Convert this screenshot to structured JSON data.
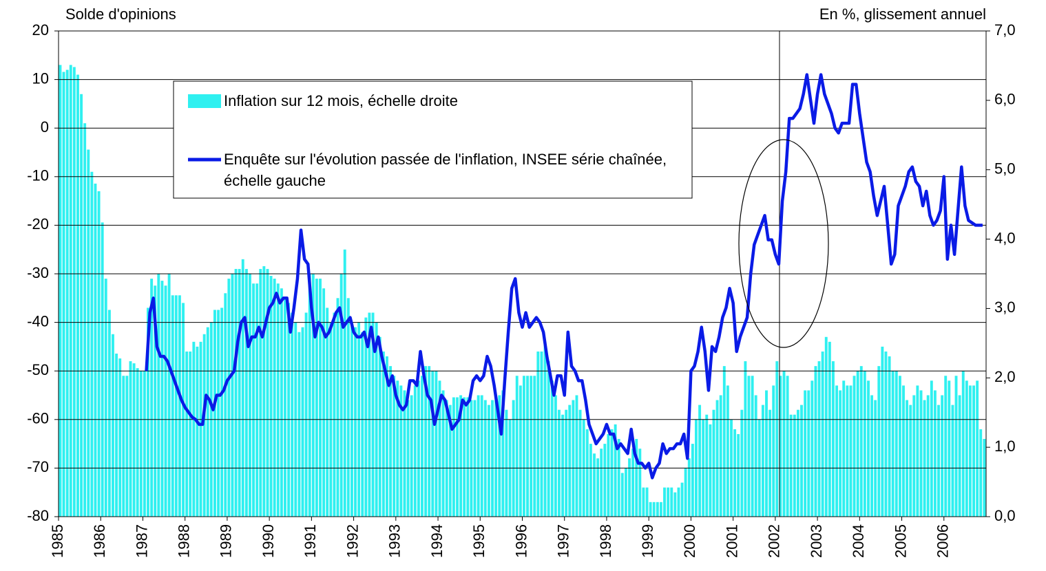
{
  "chart_data": {
    "type": "combo",
    "y_label": "Solde d'opinions",
    "y2_label": "En %, glissement annuel",
    "xlim": [
      1985,
      2007
    ],
    "xticks": [
      1985,
      1986,
      1987,
      1988,
      1989,
      1990,
      1991,
      1992,
      1993,
      1994,
      1995,
      1996,
      1997,
      1998,
      1999,
      2000,
      2001,
      2002,
      2003,
      2004,
      2005,
      2006
    ],
    "ylim": [
      -80,
      20
    ],
    "yticks": [
      -80,
      -70,
      -60,
      -50,
      -40,
      -30,
      -20,
      -10,
      0,
      10,
      20
    ],
    "y2lim": [
      0,
      7
    ],
    "y2ticks": [
      {
        "value": 0,
        "label": "0,0"
      },
      {
        "value": 1,
        "label": "1,0"
      },
      {
        "value": 2,
        "label": "2,0"
      },
      {
        "value": 3,
        "label": "3,0"
      },
      {
        "value": 4,
        "label": "4,0"
      },
      {
        "value": 5,
        "label": "5,0"
      },
      {
        "value": 6,
        "label": "6,0"
      },
      {
        "value": 7,
        "label": "7,0"
      }
    ],
    "grid": true,
    "vlines": [
      2002.1
    ],
    "x": [
      1985,
      1985.083,
      1985.167,
      1985.25,
      1985.333,
      1985.417,
      1985.5,
      1985.583,
      1985.667,
      1985.75,
      1985.833,
      1985.917,
      1986,
      1986.083,
      1986.167,
      1986.25,
      1986.333,
      1986.417,
      1986.5,
      1986.583,
      1986.667,
      1986.75,
      1986.833,
      1986.917,
      1987,
      1987.083,
      1987.167,
      1987.25,
      1987.333,
      1987.417,
      1987.5,
      1987.583,
      1987.667,
      1987.75,
      1987.833,
      1987.917,
      1988,
      1988.083,
      1988.167,
      1988.25,
      1988.333,
      1988.417,
      1988.5,
      1988.583,
      1988.667,
      1988.75,
      1988.833,
      1988.917,
      1989,
      1989.083,
      1989.167,
      1989.25,
      1989.333,
      1989.417,
      1989.5,
      1989.583,
      1989.667,
      1989.75,
      1989.833,
      1989.917,
      1990,
      1990.083,
      1990.167,
      1990.25,
      1990.333,
      1990.417,
      1990.5,
      1990.583,
      1990.667,
      1990.75,
      1990.833,
      1990.917,
      1991,
      1991.083,
      1991.167,
      1991.25,
      1991.333,
      1991.417,
      1991.5,
      1991.583,
      1991.667,
      1991.75,
      1991.833,
      1991.917,
      1992,
      1992.083,
      1992.167,
      1992.25,
      1992.333,
      1992.417,
      1992.5,
      1992.583,
      1992.667,
      1992.75,
      1992.833,
      1992.917,
      1993,
      1993.083,
      1993.167,
      1993.25,
      1993.333,
      1993.417,
      1993.5,
      1993.583,
      1993.667,
      1993.75,
      1993.833,
      1993.917,
      1994,
      1994.083,
      1994.167,
      1994.25,
      1994.333,
      1994.417,
      1994.5,
      1994.583,
      1994.667,
      1994.75,
      1994.833,
      1994.917,
      1995,
      1995.083,
      1995.167,
      1995.25,
      1995.333,
      1995.417,
      1995.5,
      1995.583,
      1995.667,
      1995.75,
      1995.833,
      1995.917,
      1996,
      1996.083,
      1996.167,
      1996.25,
      1996.333,
      1996.417,
      1996.5,
      1996.583,
      1996.667,
      1996.75,
      1996.833,
      1996.917,
      1997,
      1997.083,
      1997.167,
      1997.25,
      1997.333,
      1997.417,
      1997.5,
      1997.583,
      1997.667,
      1997.75,
      1997.833,
      1997.917,
      1998,
      1998.083,
      1998.167,
      1998.25,
      1998.333,
      1998.417,
      1998.5,
      1998.583,
      1998.667,
      1998.75,
      1998.833,
      1998.917,
      1999,
      1999.083,
      1999.167,
      1999.25,
      1999.333,
      1999.417,
      1999.5,
      1999.583,
      1999.667,
      1999.75,
      1999.833,
      1999.917,
      2000,
      2000.083,
      2000.167,
      2000.25,
      2000.333,
      2000.417,
      2000.5,
      2000.583,
      2000.667,
      2000.75,
      2000.833,
      2000.917,
      2001,
      2001.083,
      2001.167,
      2001.25,
      2001.333,
      2001.417,
      2001.5,
      2001.583,
      2001.667,
      2001.75,
      2001.833,
      2001.917,
      2002,
      2002.083,
      2002.167,
      2002.25,
      2002.333,
      2002.417,
      2002.5,
      2002.583,
      2002.667,
      2002.75,
      2002.833,
      2002.917,
      2003,
      2003.083,
      2003.167,
      2003.25,
      2003.333,
      2003.417,
      2003.5,
      2003.583,
      2003.667,
      2003.75,
      2003.833,
      2003.917,
      2004,
      2004.083,
      2004.167,
      2004.25,
      2004.333,
      2004.417,
      2004.5,
      2004.583,
      2004.667,
      2004.75,
      2004.833,
      2004.917,
      2005,
      2005.083,
      2005.167,
      2005.25,
      2005.333,
      2005.417,
      2005.5,
      2005.583,
      2005.667,
      2005.75,
      2005.833,
      2005.917,
      2006,
      2006.083,
      2006.167,
      2006.25,
      2006.333,
      2006.417,
      2006.5,
      2006.583,
      2006.667,
      2006.75,
      2006.833,
      2006.917
    ],
    "series": [
      {
        "name": "Inflation sur 12 mois, échelle droite",
        "type": "bar",
        "axis": "y2",
        "color": "#2ff0f0",
        "values": [
          6.51,
          6.41,
          6.44,
          6.51,
          6.48,
          6.37,
          6.09,
          5.67,
          5.29,
          4.97,
          4.8,
          4.69,
          4.24,
          3.43,
          2.98,
          2.63,
          2.35,
          2.28,
          2.03,
          2.03,
          2.24,
          2.21,
          2.14,
          2.1,
          2.1,
          3.01,
          3.43,
          3.33,
          3.5,
          3.4,
          3.33,
          3.5,
          3.19,
          3.19,
          3.19,
          3.08,
          2.38,
          2.38,
          2.52,
          2.45,
          2.52,
          2.63,
          2.73,
          2.8,
          2.98,
          2.98,
          3.01,
          3.22,
          3.43,
          3.5,
          3.57,
          3.57,
          3.71,
          3.57,
          3.5,
          3.36,
          3.36,
          3.57,
          3.61,
          3.57,
          3.47,
          3.43,
          3.36,
          3.29,
          3.15,
          3.08,
          2.94,
          2.8,
          2.66,
          2.73,
          2.94,
          3.5,
          3.5,
          3.43,
          3.43,
          3.29,
          3.01,
          2.8,
          2.94,
          3.15,
          3.5,
          3.85,
          3.15,
          2.8,
          2.73,
          2.8,
          2.66,
          2.87,
          2.94,
          2.94,
          2.8,
          2.59,
          2.38,
          2.31,
          2.17,
          2.03,
          1.96,
          1.89,
          1.82,
          1.68,
          1.75,
          1.89,
          1.96,
          2.03,
          2.17,
          2.17,
          2.1,
          2.1,
          1.96,
          1.82,
          1.68,
          1.61,
          1.72,
          1.72,
          1.75,
          1.72,
          1.72,
          1.68,
          1.68,
          1.75,
          1.75,
          1.68,
          1.61,
          1.68,
          1.68,
          1.75,
          1.82,
          1.54,
          1.4,
          1.68,
          2.03,
          1.89,
          2.03,
          2.03,
          2.03,
          2.03,
          2.38,
          2.38,
          2.52,
          2.24,
          1.96,
          1.75,
          1.54,
          1.47,
          1.54,
          1.61,
          1.68,
          1.75,
          1.54,
          1.4,
          1.26,
          1.05,
          0.91,
          0.84,
          0.98,
          1.05,
          1.19,
          1.26,
          1.33,
          1.12,
          0.63,
          0.7,
          0.84,
          0.98,
          1.12,
          0.98,
          0.42,
          0.42,
          0.21,
          0.21,
          0.21,
          0.21,
          0.42,
          0.42,
          0.42,
          0.35,
          0.42,
          0.49,
          0.7,
          0.84,
          1.05,
          1.4,
          1.61,
          1.4,
          1.47,
          1.33,
          1.54,
          1.68,
          1.75,
          2.17,
          1.89,
          1.4,
          1.26,
          1.19,
          1.54,
          2.24,
          2.03,
          2.03,
          1.75,
          1.4,
          1.61,
          1.82,
          1.54,
          1.89,
          2.24,
          2.03,
          2.1,
          2.03,
          1.47,
          1.47,
          1.54,
          1.61,
          1.82,
          1.82,
          1.96,
          2.17,
          2.24,
          2.38,
          2.59,
          2.52,
          2.24,
          1.89,
          1.82,
          1.96,
          1.89,
          1.89,
          2.03,
          2.1,
          2.17,
          2.1,
          1.96,
          1.75,
          1.68,
          2.17,
          2.45,
          2.38,
          2.31,
          2.1,
          2.1,
          2.03,
          1.89,
          1.68,
          1.61,
          1.75,
          1.89,
          1.82,
          1.68,
          1.75,
          1.96,
          1.82,
          1.61,
          1.75,
          2.03,
          1.96,
          1.61,
          2.03,
          1.75,
          2.1,
          1.96,
          1.89,
          1.89,
          1.96,
          1.26,
          1.12
        ]
      },
      {
        "name": "Enquête sur l'évolution passée de l'inflation, INSEE série chaînée, échelle gauche",
        "type": "line",
        "axis": "y",
        "color": "#0a1be6",
        "values": [
          null,
          null,
          null,
          null,
          null,
          null,
          null,
          null,
          null,
          null,
          null,
          null,
          null,
          null,
          null,
          null,
          null,
          null,
          null,
          null,
          null,
          null,
          null,
          null,
          null,
          -50,
          -38,
          -35,
          -45,
          -47,
          -47,
          -48,
          -50,
          -52,
          -54,
          -56,
          -57.5,
          -58.5,
          -59.5,
          -60,
          -61,
          -61,
          -55,
          -56,
          -58,
          -55,
          -55,
          -54,
          -52,
          -51,
          -50,
          -44,
          -40,
          -39,
          -45,
          -43,
          -43,
          -41,
          -43,
          -40,
          -37,
          -36,
          -34,
          -36,
          -35,
          -35,
          -42,
          -37,
          -31,
          -21,
          -27,
          -28,
          -37,
          -43,
          -40,
          -41,
          -43,
          -42,
          -40,
          -38,
          -37,
          -41,
          -40,
          -39,
          -42,
          -43,
          -43,
          -42,
          -45,
          -41,
          -46,
          -43,
          -47,
          -50,
          -53,
          -51,
          -55,
          -57,
          -58,
          -57,
          -52,
          -52,
          -53,
          -46,
          -51,
          -55,
          -56,
          -61,
          -58,
          -55,
          -56,
          -59,
          -62,
          -61,
          -60,
          -56,
          -57,
          -56,
          -52,
          -51,
          -52,
          -51,
          -47,
          -49,
          -53,
          -58,
          -63,
          -52,
          -42,
          -33,
          -31,
          -38,
          -41,
          -38,
          -41,
          -40,
          -39,
          -40,
          -42,
          -47,
          -51,
          -55,
          -51,
          -51,
          -55,
          -42,
          -49,
          -50,
          -52,
          -52,
          -56,
          -61,
          -63,
          -65,
          -64,
          -63,
          -61,
          -63,
          -63,
          -66,
          -65,
          -66,
          -67,
          -62,
          -67,
          -69,
          -69,
          -70,
          -69,
          -72,
          -70,
          -69,
          -65,
          -67,
          -66,
          -66,
          -65,
          -65,
          -63,
          -68,
          -50,
          -49,
          -46,
          -41,
          -46,
          -54,
          -45,
          -46,
          -43,
          -39,
          -37,
          -33,
          -36,
          -46,
          -43,
          -41,
          -39,
          -30,
          -24,
          -22,
          -20,
          -18,
          -23,
          -23,
          -26,
          -28,
          -15,
          -9,
          2,
          2,
          3,
          4,
          7,
          11,
          6,
          1,
          7,
          11,
          7,
          5,
          3,
          0,
          -1,
          1,
          1,
          1,
          9,
          9,
          3,
          -2,
          -7,
          -9,
          -14,
          -18,
          -15,
          -12,
          -20,
          -28,
          -26,
          -16,
          -14,
          -12,
          -9,
          -8,
          -11,
          -12,
          -16,
          -13,
          -18,
          -20,
          -19,
          -17,
          -10,
          -27,
          -20,
          -26,
          -17,
          -8,
          -16,
          -19,
          -19.5,
          -20,
          -20,
          -20
        ]
      }
    ]
  }
}
